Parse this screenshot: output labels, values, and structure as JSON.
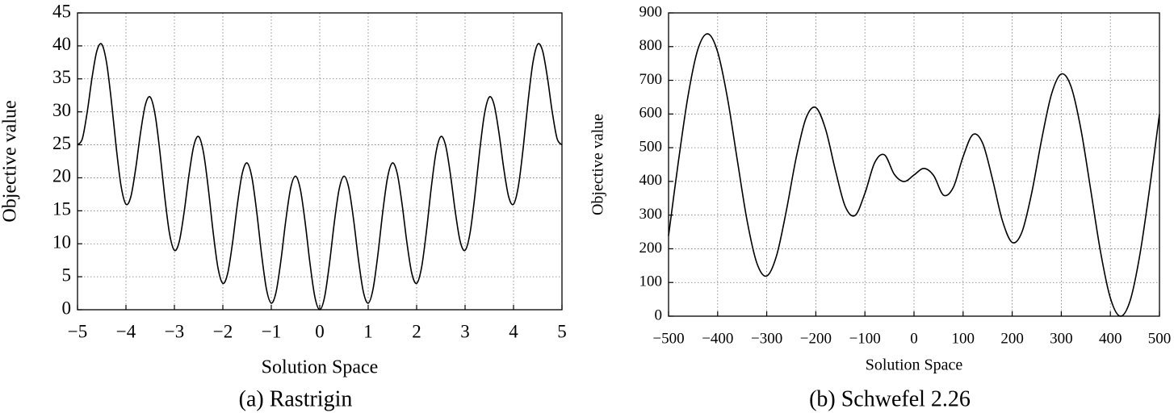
{
  "chart_data": [
    {
      "type": "line",
      "caption": "(a) Rastrigin",
      "x_label": "Solution Space",
      "y_label": "Objective value",
      "grid": true,
      "xlim": [
        -5,
        5
      ],
      "ylim": [
        0,
        45
      ],
      "xticks": [
        {
          "value": -5,
          "label": "−5"
        },
        {
          "value": -4,
          "label": "−4"
        },
        {
          "value": -3,
          "label": "−3"
        },
        {
          "value": -2,
          "label": "−2"
        },
        {
          "value": -1,
          "label": "−1"
        },
        0,
        1,
        2,
        3,
        4,
        5
      ],
      "yticks": [
        0,
        5,
        10,
        15,
        20,
        25,
        30,
        35,
        40,
        45
      ],
      "x": [
        -5,
        -4.9,
        -4.8,
        -4.7,
        -4.6,
        -4.5,
        -4.4,
        -4.3,
        -4.2,
        -4.1,
        -4,
        -3.9,
        -3.8,
        -3.7,
        -3.6,
        -3.5,
        -3.4,
        -3.3,
        -3.2,
        -3.1,
        -3,
        -2.9,
        -2.8,
        -2.7,
        -2.6,
        -2.5,
        -2.4,
        -2.3,
        -2.2,
        -2.1,
        -2,
        -1.9,
        -1.8,
        -1.7,
        -1.6,
        -1.5,
        -1.4,
        -1.3,
        -1.2,
        -1.1,
        -1,
        -0.9,
        -0.8,
        -0.7,
        -0.6,
        -0.5,
        -0.4,
        -0.3,
        -0.2,
        -0.1,
        0,
        0.1,
        0.2,
        0.3,
        0.4,
        0.5,
        0.6,
        0.7,
        0.8,
        0.9,
        1,
        1.1,
        1.2,
        1.3,
        1.4,
        1.5,
        1.6,
        1.7,
        1.8,
        1.9,
        2,
        2.1,
        2.2,
        2.3,
        2.4,
        2.5,
        2.6,
        2.7,
        2.8,
        2.9,
        3,
        3.1,
        3.2,
        3.3,
        3.4,
        3.5,
        3.6,
        3.7,
        3.8,
        3.9,
        4,
        4.1,
        4.2,
        4.3,
        4.4,
        4.5,
        4.6,
        4.7,
        4.8,
        4.9,
        5
      ],
      "series": [
        {
          "color": "#000000",
          "values": [
            25,
            25.92,
            29.95,
            35.18,
            39.25,
            40.25,
            37.45,
            31.58,
            24.55,
            18.72,
            16,
            17.12,
            21.35,
            26.78,
            31.05,
            32.25,
            29.65,
            23.98,
            17.15,
            11.52,
            9,
            10.32,
            14.75,
            20.38,
            24.85,
            26.25,
            23.85,
            18.38,
            11.75,
            6.32,
            4,
            5.52,
            10.15,
            15.98,
            20.65,
            22.25,
            20.05,
            14.78,
            8.35,
            3.12,
            1,
            2.72,
            7.55,
            13.58,
            18.45,
            20.25,
            18.25,
            13.18,
            6.95,
            1.92,
            0,
            1.92,
            6.95,
            13.18,
            18.25,
            20.25,
            18.45,
            13.58,
            7.55,
            2.72,
            1,
            3.12,
            8.35,
            14.78,
            20.05,
            22.25,
            20.65,
            15.98,
            10.15,
            5.52,
            4,
            6.32,
            11.75,
            18.38,
            23.85,
            26.25,
            24.85,
            20.38,
            14.75,
            10.32,
            9,
            11.52,
            17.15,
            23.98,
            29.65,
            32.25,
            31.05,
            26.78,
            21.35,
            17.12,
            16,
            18.72,
            24.55,
            31.58,
            37.45,
            40.25,
            39.25,
            35.18,
            29.95,
            25.92,
            25
          ]
        }
      ]
    },
    {
      "type": "line",
      "caption": "(b) Schwefel 2.26",
      "x_label": "Solution Space",
      "y_label": "Objective value",
      "grid": true,
      "xlim": [
        -500,
        500
      ],
      "ylim": [
        0,
        900
      ],
      "xticks": [
        {
          "value": -500,
          "label": "−500"
        },
        {
          "value": -400,
          "label": "−400"
        },
        {
          "value": -300,
          "label": "−300"
        },
        {
          "value": -200,
          "label": "−200"
        },
        {
          "value": -100,
          "label": "−100"
        },
        0,
        100,
        200,
        300,
        400,
        500
      ],
      "yticks": [
        0,
        100,
        200,
        300,
        400,
        500,
        600,
        700,
        800,
        900
      ],
      "x": [
        -500,
        -480,
        -460,
        -440,
        -420,
        -400,
        -380,
        -360,
        -340,
        -320,
        -300,
        -280,
        -260,
        -240,
        -220,
        -200,
        -180,
        -160,
        -140,
        -120,
        -100,
        -80,
        -60,
        -40,
        -20,
        0,
        20,
        40,
        60,
        80,
        100,
        120,
        140,
        160,
        180,
        200,
        220,
        240,
        260,
        280,
        300,
        320,
        340,
        360,
        380,
        400,
        420,
        440,
        460,
        480,
        500
      ],
      "series": [
        {
          "color": "#000000",
          "values": [
            238.28,
            458.38,
            656.28,
            793.08,
            837.88,
            784.18,
            647.28,
            463.68,
            283.38,
            156.98,
            119.28,
            179.58,
            313.58,
            470.38,
            587.78,
            618.98,
            554.18,
            432.18,
            325.28,
            299.08,
            364.58,
            455.96,
            478.63,
            420.65,
            399.55,
            418.98,
            438.41,
            417.31,
            359.33,
            382.0,
            473.38,
            538.88,
            512.68,
            405.78,
            283.78,
            218.98,
            250.18,
            367.58,
            524.38,
            658.38,
            718.68,
            680.98,
            554.58,
            374.28,
            190.68,
            53.78,
            0.08,
            44.88,
            181.68,
            379.58,
            599.68
          ]
        }
      ]
    }
  ]
}
